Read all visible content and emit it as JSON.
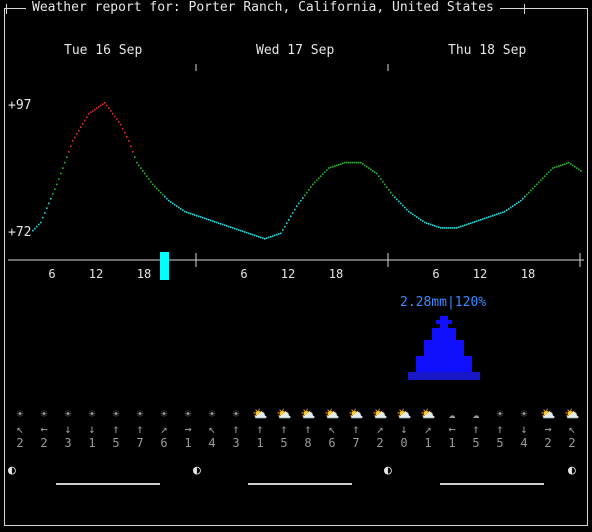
{
  "header": {
    "title": "Weather report for: Porter Ranch, California, United States"
  },
  "days": [
    "Tue 16 Sep",
    "Wed 17 Sep",
    "Thu 18 Sep"
  ],
  "temperature": {
    "max_label": "+97",
    "min_label": "+72"
  },
  "hour_ticks": [
    "6",
    "12",
    "18",
    "6",
    "12",
    "18",
    "6",
    "12",
    "18"
  ],
  "precipitation": {
    "label": "2.28mm|120%"
  },
  "weather_icons": [
    "☀",
    "☀",
    "☀",
    "☀",
    "☀",
    "☀",
    "☀",
    "☀",
    "☀",
    "☀",
    "⛅",
    "⛅",
    "⛅",
    "⛅",
    "⛅",
    "⛅",
    "⛅",
    "⛅",
    "☁",
    "☁",
    "☀",
    "☀",
    "⛅",
    "⛅",
    "⛅"
  ],
  "wind_dirs": [
    "↖",
    "←",
    "↓",
    "↓",
    "↑",
    "↑",
    "↗",
    "→",
    "↖",
    "↑",
    "↑",
    "↑",
    "↑",
    "↖",
    "↑",
    "↗",
    "↓",
    "↗",
    "←",
    "↑",
    "↑",
    "↓",
    "→",
    "↖"
  ],
  "wind_speeds": [
    "2",
    "2",
    "3",
    "1",
    "5",
    "7",
    "6",
    "1",
    "4",
    "3",
    "1",
    "5",
    "8",
    "6",
    "7",
    "2",
    "0",
    "1",
    "1",
    "5",
    "5",
    "4",
    "2",
    "2"
  ],
  "moon_phase": "◐",
  "colors": {
    "hot": "#e03030",
    "warm": "#30b030",
    "cool": "#30d8d8",
    "rain": "#1010ff",
    "now": "#00ffff"
  },
  "chart_data": {
    "type": "line",
    "title": "",
    "xlabel": "",
    "ylabel": "",
    "ylim": [
      72,
      97
    ],
    "series": [
      {
        "x": [
          0,
          2,
          4,
          6,
          8,
          10,
          12,
          14,
          15,
          16,
          18,
          20,
          22,
          24,
          26,
          28,
          30,
          32,
          34,
          36,
          38,
          40,
          42,
          44,
          46,
          48,
          50,
          52,
          54,
          56,
          58,
          60,
          62,
          64,
          66,
          68,
          70,
          72
        ],
        "values": [
          72,
          72,
          75,
          82,
          90,
          95,
          97,
          93,
          90,
          86,
          82,
          79,
          77,
          76,
          75,
          74,
          73,
          72,
          73,
          78,
          82,
          85,
          86,
          86,
          84,
          80,
          77,
          75,
          74,
          74,
          75,
          76,
          77,
          79,
          82,
          85,
          86,
          84
        ],
        "note_x_unit": "hours"
      }
    ]
  }
}
